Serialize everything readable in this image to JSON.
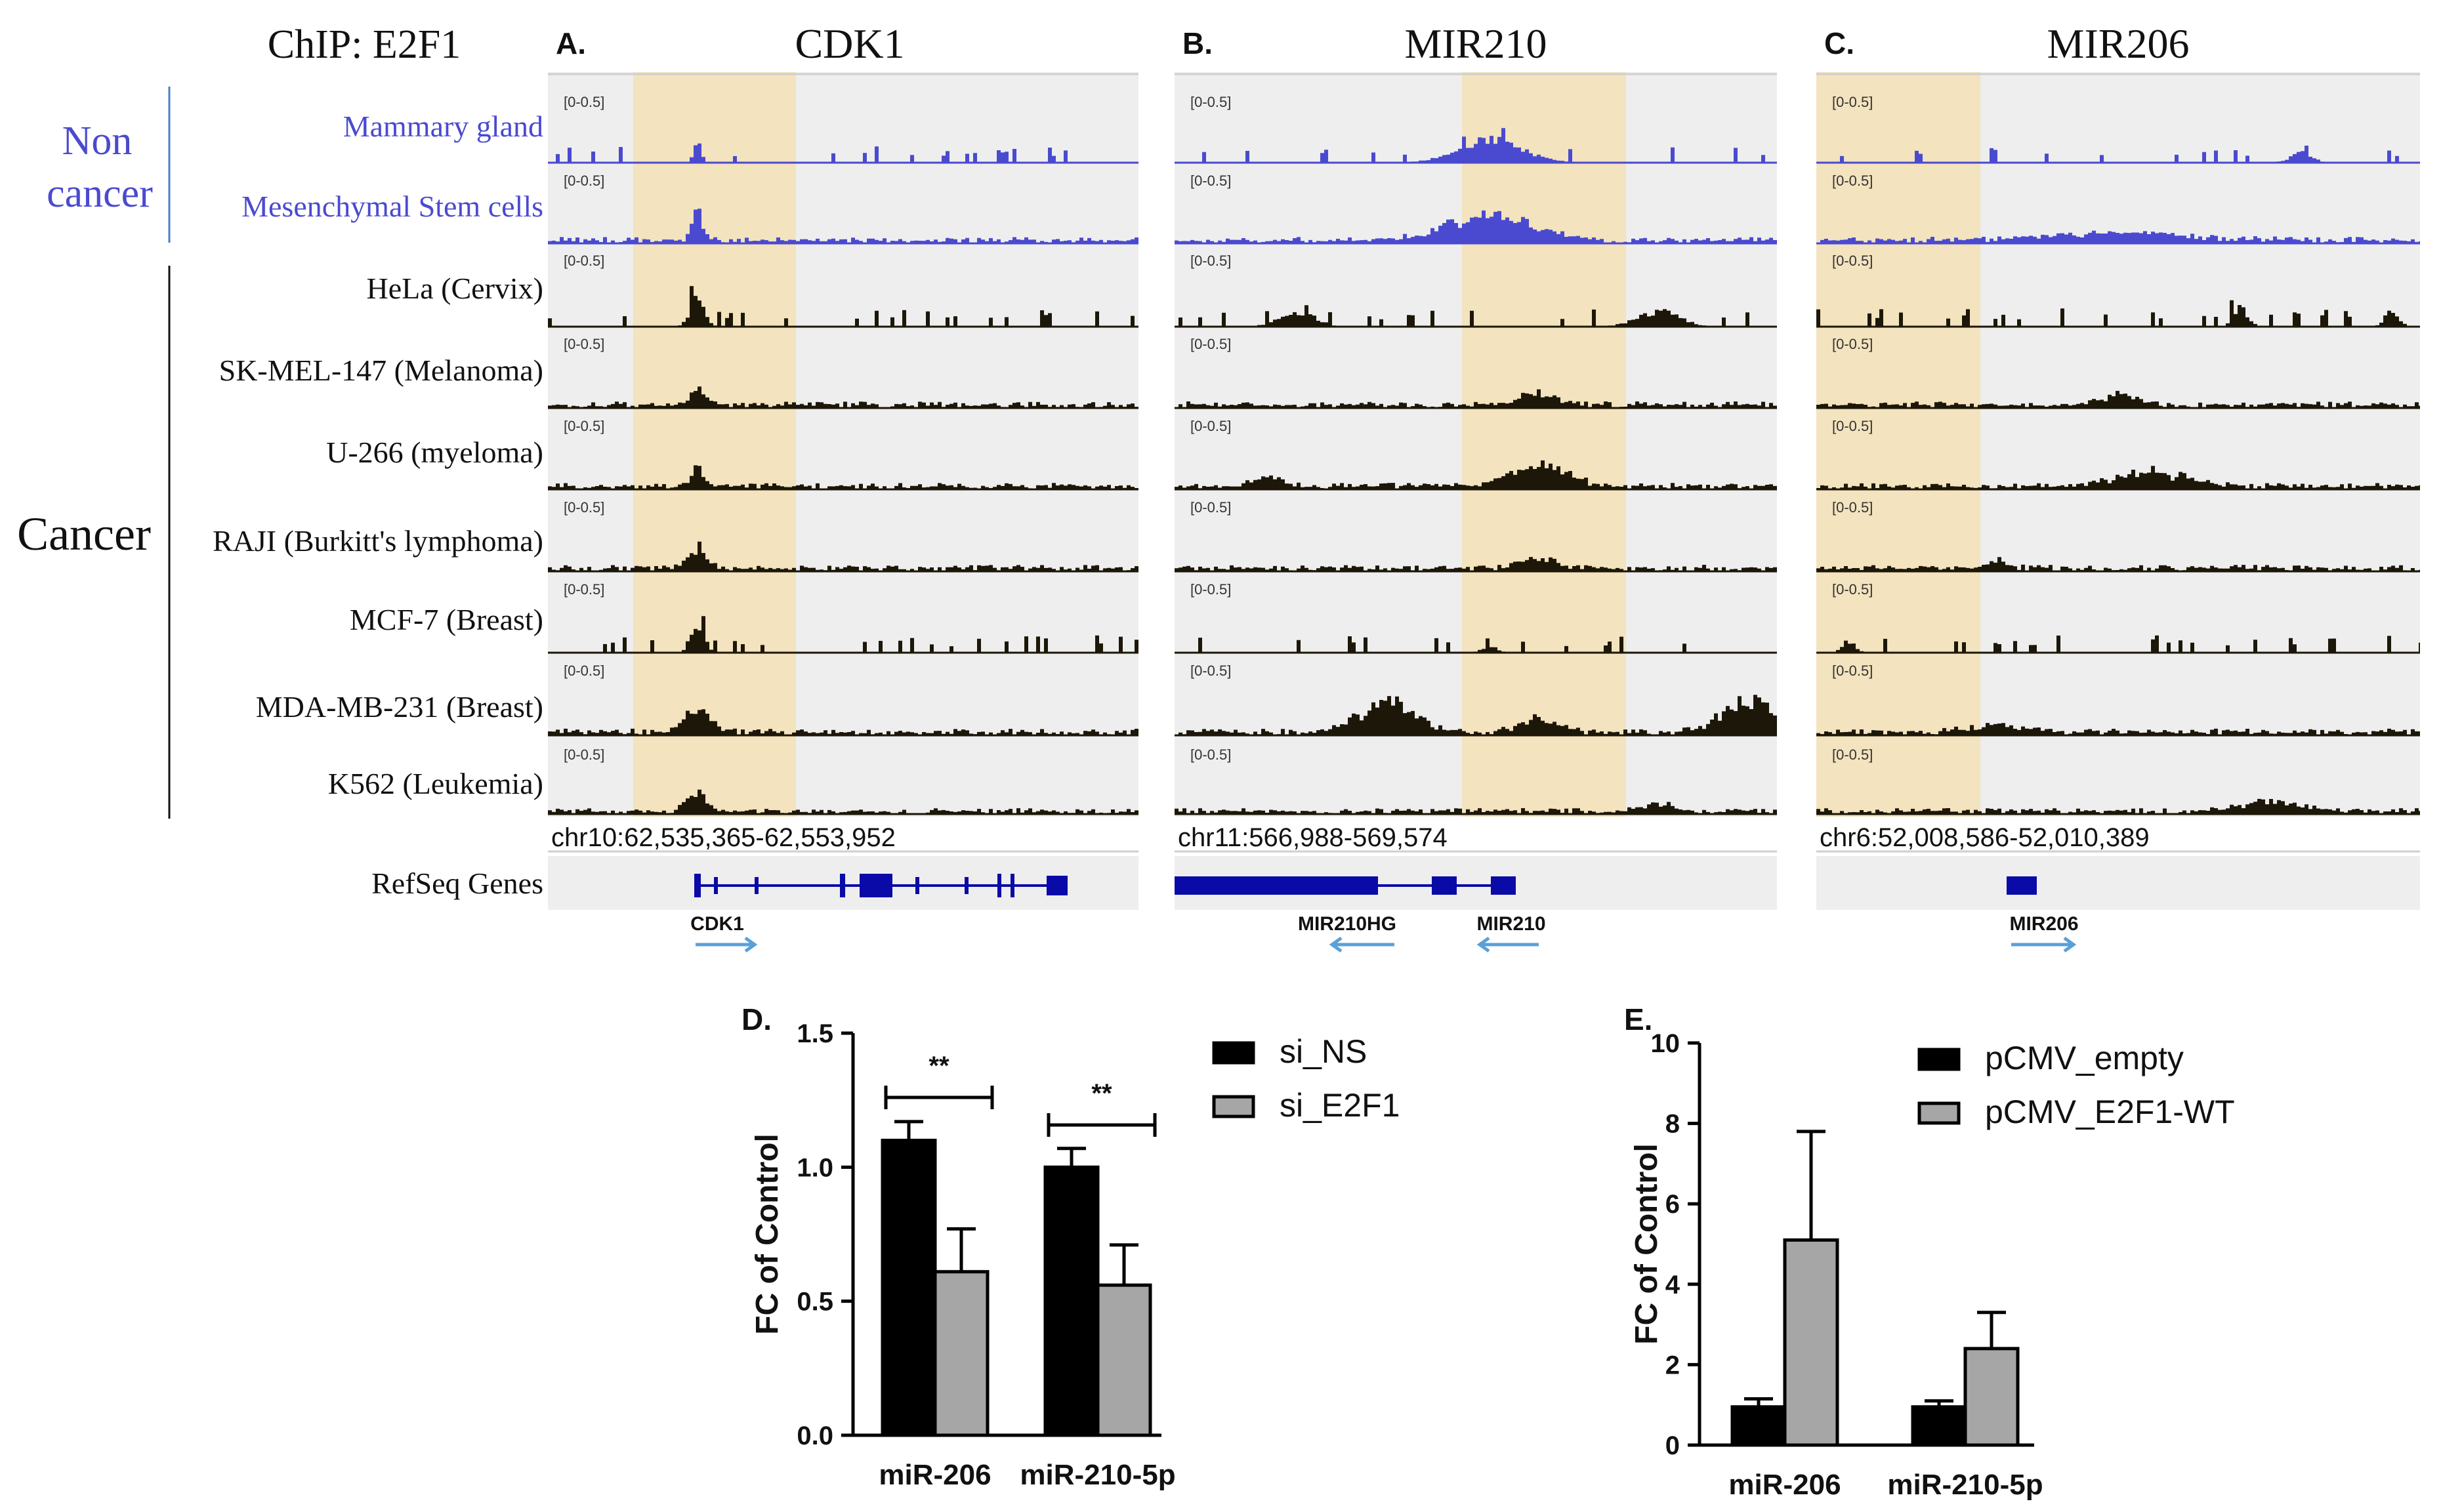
{
  "figure": {
    "chip_label": "ChIP: E2F1",
    "group_non_cancer": [
      "Non",
      "cancer"
    ],
    "group_cancer": "Cancer",
    "refseq_label": "RefSeq Genes",
    "range_label": "[0-0.5]",
    "track_names": [
      "Mammary  gland",
      "Mesenchymal  Stem cells",
      "HeLa (Cervix)",
      "SK-MEL-147 (Melanoma)",
      "U-266 (myeloma)",
      "RAJI (Burkitt's  lymphoma)",
      "MCF-7 (Breast)",
      "MDA-MB-231 (Breast)",
      "K562 (Leukemia)"
    ],
    "colors": {
      "non_cancer": "#4a4ad0",
      "cancer": "#1c1708",
      "highlight": "#f3e3be",
      "panel_bg": "#eeeeee",
      "gene": "#0a0aa8",
      "arrow": "#5aa0d8"
    }
  },
  "panels": [
    {
      "letter": "A.",
      "title": "CDK1",
      "coords": "chr10:62,535,365-62,553,952",
      "genes": [
        {
          "name": "CDK1",
          "direction": "right"
        }
      ]
    },
    {
      "letter": "B.",
      "title": "MIR210",
      "coords": "chr11:566,988-569,574",
      "genes": [
        {
          "name": "MIR210HG",
          "direction": "left"
        },
        {
          "name": "MIR210",
          "direction": "left"
        }
      ]
    },
    {
      "letter": "C.",
      "title": "MIR206",
      "coords": "chr6:52,008,586-52,010,389",
      "genes": [
        {
          "name": "MIR206",
          "direction": "right"
        }
      ]
    }
  ],
  "chart_data": [
    {
      "panel": "D.",
      "type": "bar",
      "categories": [
        "miR-206",
        "miR-210-5p"
      ],
      "series": [
        {
          "name": "si_NS",
          "values": [
            1.1,
            1.0
          ],
          "errors": [
            0.07,
            0.07
          ],
          "color": "#000000"
        },
        {
          "name": "si_E2F1",
          "values": [
            0.61,
            0.56
          ],
          "errors": [
            0.16,
            0.15
          ],
          "color": "#a6a6a6"
        }
      ],
      "ylabel": "FC of Control",
      "ylim": [
        0,
        1.5
      ],
      "yticks": [
        "0.0",
        "0.5",
        "1.0",
        "1.5"
      ],
      "significance": [
        "**",
        "**"
      ]
    },
    {
      "panel": "E.",
      "type": "bar",
      "categories": [
        "miR-206",
        "miR-210-5p"
      ],
      "series": [
        {
          "name": "pCMV_empty",
          "values": [
            0.95,
            0.95
          ],
          "errors": [
            0.2,
            0.15
          ],
          "color": "#000000"
        },
        {
          "name": "pCMV_E2F1-WT",
          "values": [
            5.1,
            2.4
          ],
          "errors": [
            2.7,
            0.9
          ],
          "color": "#a6a6a6"
        }
      ],
      "ylabel": "FC of Control",
      "ylim": [
        0,
        10
      ],
      "yticks": [
        "0",
        "2",
        "4",
        "6",
        "8",
        "10"
      ],
      "significance": []
    }
  ]
}
